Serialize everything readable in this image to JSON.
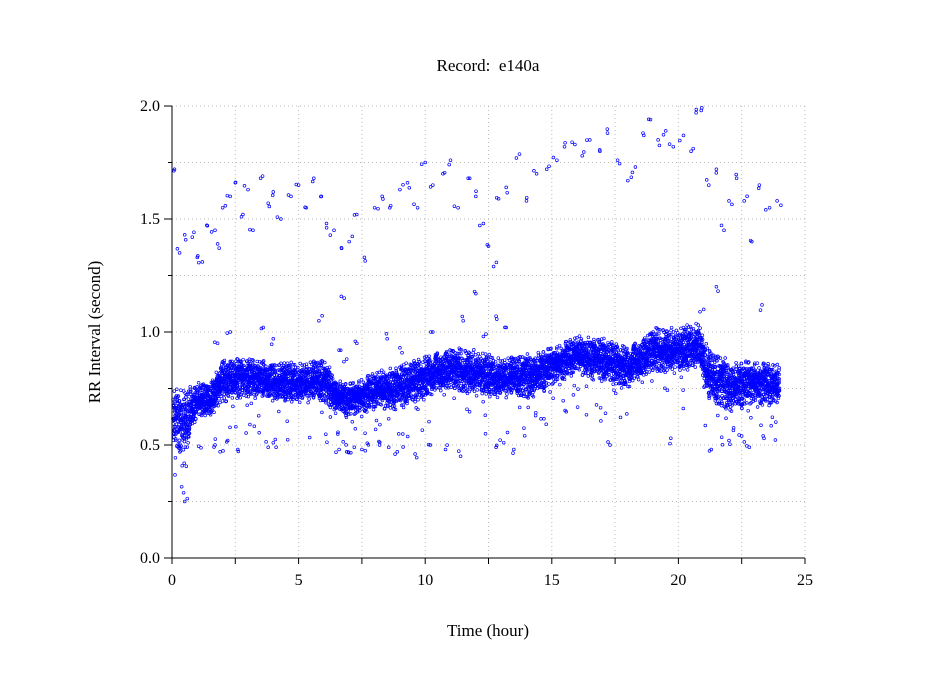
{
  "chart_data": {
    "type": "scatter",
    "title": "Record:  e140a",
    "xlabel": "Time (hour)",
    "ylabel": "RR Interval (second)",
    "xlim": [
      0,
      25
    ],
    "ylim": [
      0,
      2.0
    ],
    "x_ticks": [
      0,
      5,
      10,
      15,
      20,
      25
    ],
    "x_tick_labels": [
      "0",
      "5",
      "10",
      "15",
      "20",
      "25"
    ],
    "y_ticks": [
      0,
      0.5,
      1.0,
      1.5,
      2.0
    ],
    "y_tick_labels": [
      "0.0",
      "0.5",
      "1.0",
      "1.5",
      "2.0"
    ],
    "grid": true,
    "marker": "hollow-circle",
    "color": "#0000ff",
    "series": [
      {
        "main_band_hour": [
          0,
          0.5,
          1,
          1.5,
          2,
          3,
          4,
          5,
          6,
          6.5,
          7,
          8,
          9,
          10,
          11,
          12,
          13,
          14,
          15,
          16,
          17,
          18,
          19,
          20,
          20.8,
          21.2,
          22,
          23,
          24
        ],
        "main_band_center": [
          0.62,
          0.6,
          0.7,
          0.7,
          0.78,
          0.8,
          0.78,
          0.78,
          0.78,
          0.72,
          0.7,
          0.74,
          0.76,
          0.8,
          0.84,
          0.82,
          0.8,
          0.8,
          0.85,
          0.9,
          0.88,
          0.84,
          0.92,
          0.92,
          0.95,
          0.8,
          0.76,
          0.78,
          0.76
        ],
        "main_band_spread": [
          0.12,
          0.12,
          0.06,
          0.06,
          0.08,
          0.07,
          0.07,
          0.07,
          0.08,
          0.06,
          0.06,
          0.07,
          0.08,
          0.08,
          0.08,
          0.08,
          0.07,
          0.08,
          0.07,
          0.07,
          0.08,
          0.08,
          0.08,
          0.08,
          0.08,
          0.1,
          0.09,
          0.08,
          0.08
        ]
      },
      {
        "outliers": [
          [
            0.1,
            1.72
          ],
          [
            0.3,
            1.35
          ],
          [
            0.5,
            1.43
          ],
          [
            0.8,
            1.42
          ],
          [
            1.0,
            1.33
          ],
          [
            1.2,
            1.31
          ],
          [
            1.4,
            1.47
          ],
          [
            1.7,
            1.45
          ],
          [
            1.8,
            1.39
          ],
          [
            2.0,
            1.55
          ],
          [
            2.3,
            1.6
          ],
          [
            2.5,
            1.66
          ],
          [
            2.8,
            1.52
          ],
          [
            3.0,
            1.63
          ],
          [
            3.2,
            1.45
          ],
          [
            3.5,
            1.68
          ],
          [
            3.8,
            1.57
          ],
          [
            4.0,
            1.62
          ],
          [
            4.3,
            1.5
          ],
          [
            4.7,
            1.6
          ],
          [
            5.0,
            1.65
          ],
          [
            5.3,
            1.55
          ],
          [
            5.6,
            1.68
          ],
          [
            5.9,
            1.6
          ],
          [
            6.1,
            1.48
          ],
          [
            6.4,
            1.45
          ],
          [
            6.7,
            1.37
          ],
          [
            7.0,
            1.4
          ],
          [
            7.3,
            1.52
          ],
          [
            7.6,
            1.33
          ],
          [
            8.0,
            1.55
          ],
          [
            8.3,
            1.6
          ],
          [
            8.6,
            1.55
          ],
          [
            9.0,
            1.63
          ],
          [
            9.3,
            1.66
          ],
          [
            9.7,
            1.55
          ],
          [
            10.0,
            1.75
          ],
          [
            10.3,
            1.65
          ],
          [
            10.7,
            1.7
          ],
          [
            11.0,
            1.76
          ],
          [
            11.3,
            1.55
          ],
          [
            11.7,
            1.68
          ],
          [
            12.0,
            1.6
          ],
          [
            12.3,
            1.48
          ],
          [
            12.5,
            1.38
          ],
          [
            12.7,
            1.29
          ],
          [
            12.9,
            1.59
          ],
          [
            13.2,
            1.64
          ],
          [
            13.6,
            1.77
          ],
          [
            14.0,
            1.58
          ],
          [
            14.4,
            1.7
          ],
          [
            14.8,
            1.72
          ],
          [
            15.2,
            1.76
          ],
          [
            15.5,
            1.82
          ],
          [
            15.8,
            1.84
          ],
          [
            16.2,
            1.78
          ],
          [
            16.5,
            1.85
          ],
          [
            16.9,
            1.8
          ],
          [
            17.2,
            1.88
          ],
          [
            17.6,
            1.76
          ],
          [
            18.0,
            1.67
          ],
          [
            18.3,
            1.73
          ],
          [
            18.6,
            1.88
          ],
          [
            18.9,
            1.94
          ],
          [
            19.2,
            1.85
          ],
          [
            19.5,
            1.89
          ],
          [
            19.8,
            1.82
          ],
          [
            20.2,
            1.87
          ],
          [
            20.5,
            1.8
          ],
          [
            20.7,
            1.97
          ],
          [
            20.9,
            1.98
          ],
          [
            21.2,
            1.65
          ],
          [
            21.5,
            1.72
          ],
          [
            21.8,
            1.45
          ],
          [
            22.0,
            1.58
          ],
          [
            22.3,
            1.68
          ],
          [
            22.6,
            1.58
          ],
          [
            22.9,
            1.4
          ],
          [
            23.2,
            1.65
          ],
          [
            23.6,
            1.55
          ],
          [
            23.9,
            1.58
          ],
          [
            1.7,
            0.5
          ],
          [
            1.9,
            0.47
          ],
          [
            2.2,
            0.52
          ],
          [
            2.6,
            0.48
          ],
          [
            3.8,
            0.49
          ],
          [
            4.0,
            0.51
          ],
          [
            6.6,
            0.48
          ],
          [
            6.9,
            0.47
          ],
          [
            7.2,
            0.49
          ],
          [
            7.5,
            0.48
          ],
          [
            8.2,
            0.5
          ],
          [
            8.9,
            0.47
          ],
          [
            9.6,
            0.46
          ],
          [
            10.2,
            0.5
          ],
          [
            10.8,
            0.48
          ],
          [
            11.4,
            0.45
          ],
          [
            12.8,
            0.49
          ],
          [
            13.1,
            0.51
          ],
          [
            13.5,
            0.48
          ],
          [
            17.3,
            0.5
          ],
          [
            19.7,
            0.53
          ],
          [
            21.3,
            0.48
          ],
          [
            22.0,
            0.52
          ],
          [
            22.8,
            0.49
          ],
          [
            0.5,
            0.25
          ],
          [
            1.8,
            0.95
          ],
          [
            2.3,
            1.0
          ],
          [
            3.6,
            1.02
          ],
          [
            4.0,
            0.97
          ],
          [
            5.8,
            1.05
          ],
          [
            6.6,
            0.92
          ],
          [
            6.9,
            0.88
          ],
          [
            7.3,
            0.95
          ],
          [
            8.5,
            0.97
          ],
          [
            9.0,
            0.93
          ],
          [
            10.3,
            1.0
          ],
          [
            11.5,
            1.05
          ],
          [
            12.3,
            0.98
          ],
          [
            12.8,
            1.07
          ],
          [
            13.2,
            1.02
          ],
          [
            19.0,
            1.0
          ],
          [
            21.0,
            1.1
          ],
          [
            21.5,
            1.2
          ],
          [
            23.3,
            1.12
          ],
          [
            6.8,
            1.15
          ],
          [
            12.0,
            1.17
          ]
        ]
      }
    ]
  }
}
